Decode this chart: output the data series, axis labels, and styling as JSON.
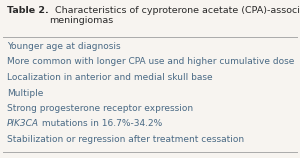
{
  "title_bold": "Table 2.",
  "title_rest": "  Characteristics of cyproterone acetate (CPA)-associated\nmeningiomas",
  "rows": [
    {
      "text": "Younger age at diagnosis",
      "italic_prefix": ""
    },
    {
      "text": "More common with longer CPA use and higher cumulative dose",
      "italic_prefix": ""
    },
    {
      "text": "Localization in anterior and medial skull base",
      "italic_prefix": ""
    },
    {
      "text": "Multiple",
      "italic_prefix": ""
    },
    {
      "text": "Strong progesterone receptor expression",
      "italic_prefix": ""
    },
    {
      "text": " mutations in 16.7%-34.2%",
      "italic_prefix": "PIK3CA"
    },
    {
      "text": "Stabilization or regression after treatment cessation",
      "italic_prefix": ""
    }
  ],
  "bg_color": "#f7f4f0",
  "text_color": "#4a6a85",
  "title_color": "#2a2a2a",
  "line_color": "#aaaaaa",
  "title_fontsize": 6.8,
  "row_fontsize": 6.5
}
